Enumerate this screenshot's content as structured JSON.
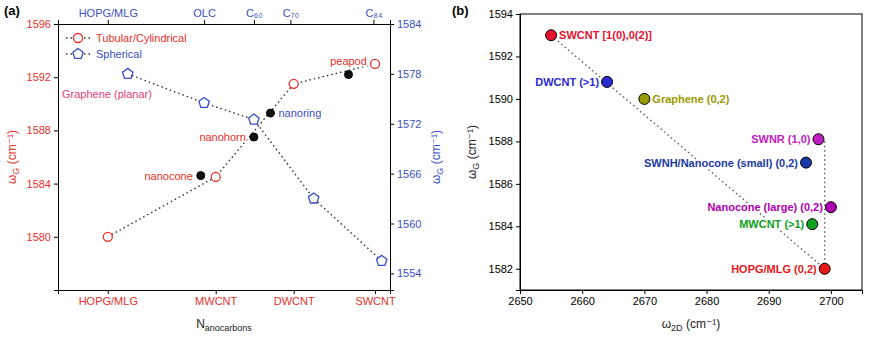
{
  "chart_data": [
    {
      "type": "scatter",
      "panel_label": "(a)",
      "xlabel": "Nanocarbons",
      "ylabel": "ωG (cm⁻¹)",
      "y2label": "ωG (cm⁻¹)",
      "xlim": [
        0,
        10
      ],
      "xticks": [
        {
          "value": 1.5,
          "label": "HOPG/MLG"
        },
        {
          "value": 4.75,
          "label": "MWCNT"
        },
        {
          "value": 7.1,
          "label": "DWCNT"
        },
        {
          "value": 9.55,
          "label": "SWCNT"
        }
      ],
      "x2ticks": [
        {
          "value": 1.5,
          "label": "HOPG/MLG"
        },
        {
          "value": 4.4,
          "label": "OLC"
        },
        {
          "value": 5.9,
          "label": "C₆₀"
        },
        {
          "value": 7.0,
          "label": "C₇₀"
        },
        {
          "value": 9.5,
          "label": "C₈₄"
        }
      ],
      "ylim": [
        1576,
        1596
      ],
      "yticks": [
        1580,
        1584,
        1588,
        1592,
        1596
      ],
      "y2lim": [
        1552,
        1584
      ],
      "y2ticks": [
        1554,
        1560,
        1566,
        1572,
        1578,
        1584
      ],
      "legend": "top-left",
      "series": [
        {
          "name": "Tubular/Cylindrical",
          "color": "#e8302a",
          "marker": "open-circle",
          "line_style": "dotted",
          "x": [
            1.5,
            4.75,
            7.1,
            9.55
          ],
          "values": [
            1580,
            1584.5,
            1591.5,
            1593
          ]
        },
        {
          "color": "#111111",
          "marker": "filled-circle",
          "x": [
            4.3,
            5.9,
            6.4,
            8.75
          ],
          "values": [
            1584.6,
            1587.5,
            1589.3,
            1592.2
          ],
          "labels": [
            "nanocone",
            "nanohorn",
            "nanoring",
            "peapod"
          ]
        },
        {
          "name": "Spherical",
          "color": "#3a4fc4",
          "marker": "open-pentagon",
          "line_style": "dotted",
          "axis": "y2",
          "x": [
            2.1,
            4.4,
            5.9,
            7.7,
            9.75
          ],
          "values": [
            1578,
            1574.5,
            1572.5,
            1563,
            1555.5
          ],
          "labels": [
            "Graphene (planar)",
            null,
            null,
            null,
            null
          ]
        }
      ]
    },
    {
      "type": "scatter",
      "panel_label": "(b)",
      "xlabel": "ω2D (cm⁻¹)",
      "ylabel": "ωG (cm⁻¹)",
      "xlim": [
        2650,
        2705
      ],
      "xticks": [
        2650,
        2660,
        2670,
        2680,
        2690,
        2700
      ],
      "ylim": [
        1581,
        1594
      ],
      "yticks": [
        1582,
        1584,
        1586,
        1588,
        1590,
        1592,
        1594
      ],
      "marker": "circle",
      "line_style": "dotted",
      "x": [
        2655,
        2664,
        2670,
        2698,
        2696,
        2700,
        2697,
        2699
      ],
      "values": [
        1593,
        1590.8,
        1590,
        1588.1,
        1587,
        1584.9,
        1584.1,
        1582
      ],
      "labels": [
        "SWCNT [1(0),0(2)]",
        "DWCNT (>1)",
        "Graphene (0,2)",
        "SWNR (1,0)",
        "SWNH/Nanocone (small) (0,2)",
        "Nanocone (large) (0,2)",
        "MWCNT (>1)",
        "HOPG/MLG (0,2)"
      ],
      "colors": [
        "#e8102f",
        "#2a2ad0",
        "#9a9a00",
        "#c020c0",
        "#1a3aa8",
        "#b000b0",
        "#10a020",
        "#e81818"
      ]
    }
  ]
}
